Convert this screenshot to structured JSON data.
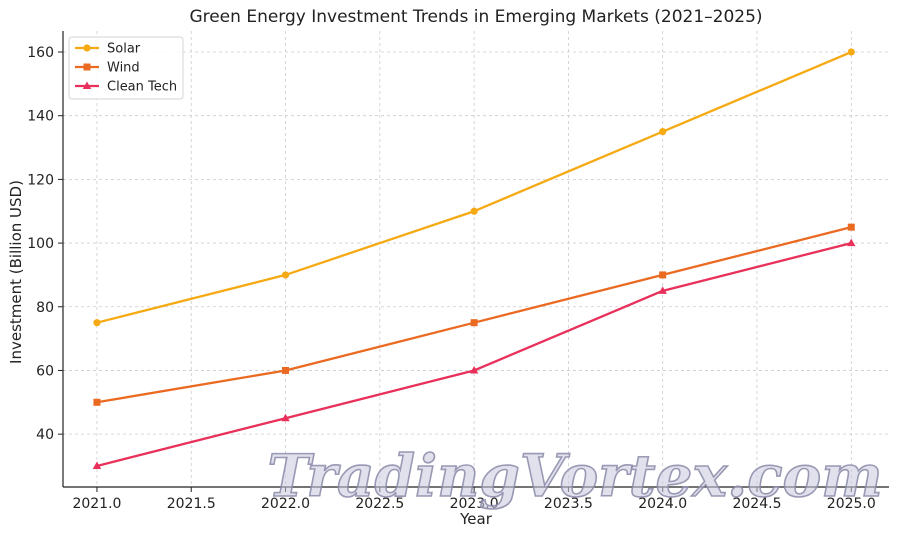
{
  "chart_data": {
    "type": "line",
    "title": "Green Energy Investment Trends in Emerging Markets (2021–2025)",
    "xlabel": "Year",
    "ylabel": "Investment (Billion USD)",
    "xlim": [
      2020.82,
      2025.2
    ],
    "ylim": [
      23.4,
      166.6
    ],
    "x": [
      2021,
      2022,
      2023,
      2024,
      2025
    ],
    "xticks": [
      "2021.0",
      "2021.5",
      "2022.0",
      "2022.5",
      "2023.0",
      "2023.5",
      "2024.0",
      "2024.5",
      "2025.0"
    ],
    "xtick_values": [
      2021.0,
      2021.5,
      2022.0,
      2022.5,
      2023.0,
      2023.5,
      2024.0,
      2024.5,
      2025.0
    ],
    "yticks": [
      "40",
      "60",
      "80",
      "100",
      "120",
      "140",
      "160"
    ],
    "ytick_values": [
      40,
      60,
      80,
      100,
      120,
      140,
      160
    ],
    "grid": true,
    "legend_position": "top-left",
    "series": [
      {
        "name": "Solar",
        "values": [
          75,
          90,
          110,
          135,
          160
        ],
        "color": "#f5a912",
        "marker": "circle"
      },
      {
        "name": "Wind",
        "values": [
          50,
          60,
          75,
          90,
          105
        ],
        "color": "#ea6a22",
        "marker": "square"
      },
      {
        "name": "Clean Tech",
        "values": [
          30,
          45,
          60,
          85,
          100
        ],
        "color": "#e8305a",
        "marker": "triangle"
      }
    ],
    "watermark": "TradingVortex.com"
  }
}
